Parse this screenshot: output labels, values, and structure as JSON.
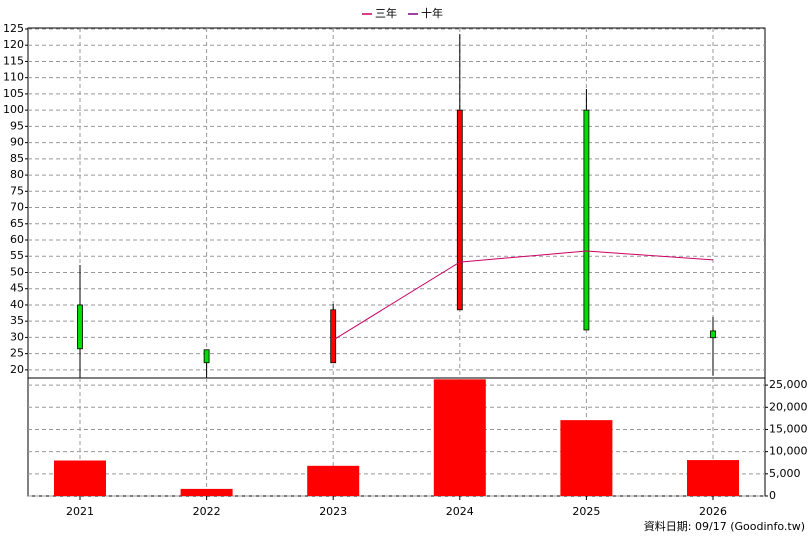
{
  "chart_data": [
    {
      "type": "candlestick",
      "open": [
        40,
        26.2,
        22.2,
        38.5,
        100,
        32
      ],
      "high": [
        52.3,
        26.2,
        40.3,
        123.4,
        106.5,
        36.3
      ],
      "low": [
        17.5,
        17.5,
        22.2,
        38.5,
        32.3,
        18.2
      ],
      "close": [
        26.5,
        22.2,
        38.5,
        100,
        32.3,
        29.9
      ],
      "up_color": "#ff0000",
      "down_color": "#00dd00",
      "series": [
        {
          "name": "三年",
          "color": "#cc0066",
          "values": [
            null,
            null,
            29.2,
            53.2,
            56.6,
            53.9
          ]
        },
        {
          "name": "十年",
          "color": "#800080",
          "values": [
            null,
            null,
            null,
            null,
            null,
            null
          ]
        }
      ],
      "ylim": [
        17.5,
        125.3
      ],
      "yticks": [
        20,
        25,
        30,
        35,
        40,
        45,
        50,
        55,
        60,
        65,
        70,
        75,
        80,
        85,
        90,
        95,
        100,
        105,
        110,
        115,
        120,
        125
      ],
      "grid": true
    },
    {
      "type": "bar",
      "categories": [
        "2021",
        "2022",
        "2023",
        "2024",
        "2025",
        "2026"
      ],
      "values": [
        8000,
        1600,
        6800,
        26300,
        17100,
        8100
      ],
      "color": "#ff0000",
      "ylim": [
        0,
        26600
      ],
      "yticks": [
        {
          "value": 0,
          "label": "0"
        },
        {
          "value": 5000,
          "label": "5,000"
        },
        {
          "value": 10000,
          "label": "10,000"
        },
        {
          "value": 15000,
          "label": "15,000"
        },
        {
          "value": 20000,
          "label": "20,000"
        },
        {
          "value": 25000,
          "label": "25,000"
        }
      ],
      "grid": true
    }
  ],
  "footer": "資料日期: 09/17  (Goodinfo.tw)"
}
